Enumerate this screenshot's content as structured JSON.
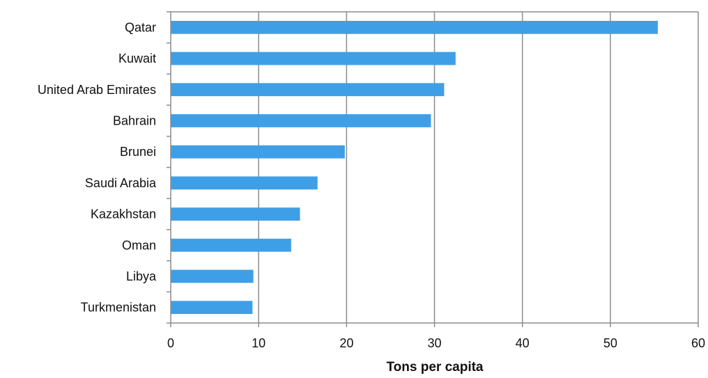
{
  "chart_data": {
    "type": "bar",
    "orientation": "horizontal",
    "title": "",
    "xlabel": "Tons per capita",
    "ylabel": "",
    "categories": [
      "Qatar",
      "Kuwait",
      "United Arab Emirates",
      "Bahrain",
      "Brunei",
      "Saudi Arabia",
      "Kazakhstan",
      "Oman",
      "Libya",
      "Turkmenistan"
    ],
    "values": [
      55.4,
      32.4,
      31.1,
      29.6,
      19.8,
      16.7,
      14.7,
      13.7,
      9.4,
      9.3
    ],
    "xlim": [
      0,
      60
    ],
    "xticks": [
      "0",
      "10",
      "20",
      "30",
      "40",
      "50",
      "60"
    ],
    "grid": "vertical",
    "legend": "none",
    "bar_color": "#3f9fe6",
    "grid_color": "#8c8c8c"
  }
}
